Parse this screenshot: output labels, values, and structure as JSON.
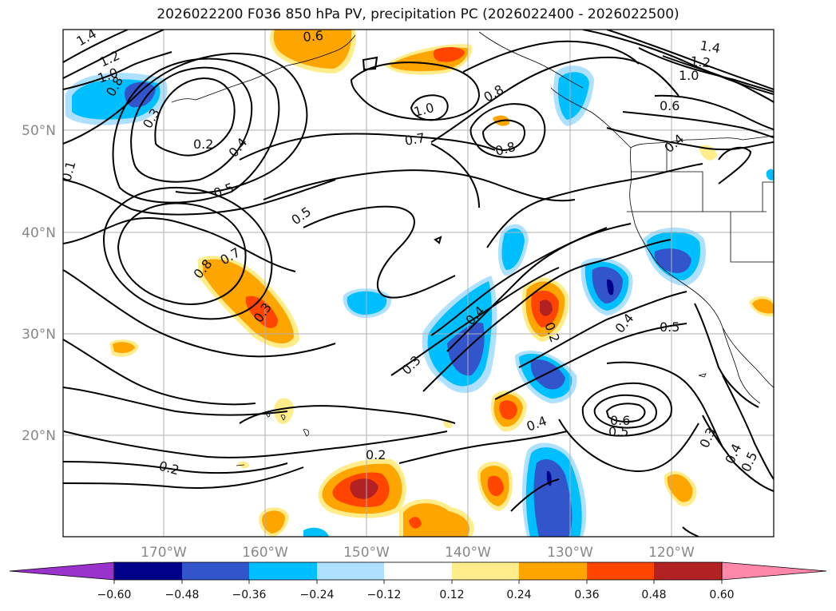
{
  "title": "2026022200 F036 850 hPa PV, precipitation PC (2026022400 - 2026022500)",
  "colors": {
    "neg_060": "#9933cc",
    "neg_048": "#00008b",
    "neg_036": "#3355cc",
    "neg_024": "#00bfff",
    "neg_012": "#aee0ff",
    "zero": "#ffffff",
    "pos_012": "#ffec8b",
    "pos_024": "#ffa500",
    "pos_036": "#ff4500",
    "pos_048": "#b22222",
    "pos_060": "#ff88aa"
  },
  "lat_labels": [
    "50°N",
    "40°N",
    "30°N",
    "20°N"
  ],
  "lon_labels": [
    "170°W",
    "160°W",
    "150°W",
    "140°W",
    "130°W",
    "120°W"
  ],
  "colorbar": {
    "ticks": [
      "−0.60",
      "−0.48",
      "−0.36",
      "−0.24",
      "−0.12",
      "0.12",
      "0.24",
      "0.36",
      "0.48",
      "0.60"
    ],
    "bins": [
      "#9933cc",
      "#00008b",
      "#3355cc",
      "#00bfff",
      "#aee0ff",
      "#ffffff",
      "#ffec8b",
      "#ffa500",
      "#ff4500",
      "#b22222",
      "#ff88aa"
    ]
  },
  "contour_labels": [
    "1.4",
    "1.2",
    "1.0",
    "0.8",
    "0.3",
    "0.2",
    "0.4",
    "0.5",
    "0.8",
    "0.7",
    "0.3",
    "0.5",
    "1.0",
    "0.7",
    "0.8",
    "0.8",
    "1.4",
    "1.2",
    "1.0",
    "0.6",
    "0.4",
    "0.4",
    "0.3",
    "0.2",
    "0.4",
    "0.4",
    "0.5",
    "0.6",
    "0.5",
    "0.3",
    "0.4",
    "0.5",
    "0.2",
    "0.2",
    "0.1",
    "0.6"
  ]
}
